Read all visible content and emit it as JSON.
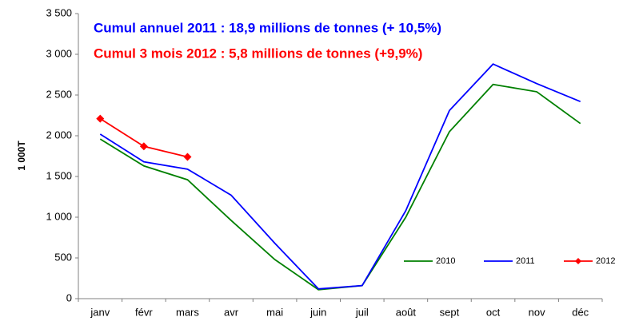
{
  "chart_data": {
    "type": "line",
    "annotations": [
      {
        "text": "Cumul annuel 2011 : 18,9 millions de tonnes (+ 10,5%)",
        "color": "#0000ff"
      },
      {
        "text": "Cumul 3 mois 2012 : 5,8 millions de tonnes (+9,9%)",
        "color": "#ff0000"
      }
    ],
    "y_label": "1 000T",
    "categories": [
      "janv",
      "févr",
      "mars",
      "avr",
      "mai",
      "juin",
      "juil",
      "août",
      "sept",
      "oct",
      "nov",
      "déc"
    ],
    "series": [
      {
        "name": "2010",
        "color": "#008000",
        "values": [
          1960,
          1630,
          1460,
          960,
          480,
          110,
          160,
          1000,
          2050,
          2630,
          2540,
          2150
        ]
      },
      {
        "name": "2011",
        "color": "#0000ff",
        "values": [
          2020,
          1680,
          1590,
          1270,
          680,
          120,
          160,
          1080,
          2310,
          2880,
          2640,
          2420
        ]
      },
      {
        "name": "2012",
        "color": "#ff0000",
        "marker": "diamond",
        "values": [
          2210,
          1870,
          1740,
          null,
          null,
          null,
          null,
          null,
          null,
          null,
          null,
          null
        ]
      }
    ],
    "ylim": [
      0,
      3500
    ],
    "yticks": [
      0,
      500,
      {
        "value": 1000,
        "label": "1 000"
      },
      {
        "value": 1500,
        "label": "1 500"
      },
      {
        "value": 2000,
        "label": "2 000"
      },
      {
        "value": 2500,
        "label": "2 500"
      },
      {
        "value": 3000,
        "label": "3 000"
      },
      {
        "value": 3500,
        "label": "3 500"
      }
    ],
    "grid": false,
    "legend": "lower right"
  }
}
